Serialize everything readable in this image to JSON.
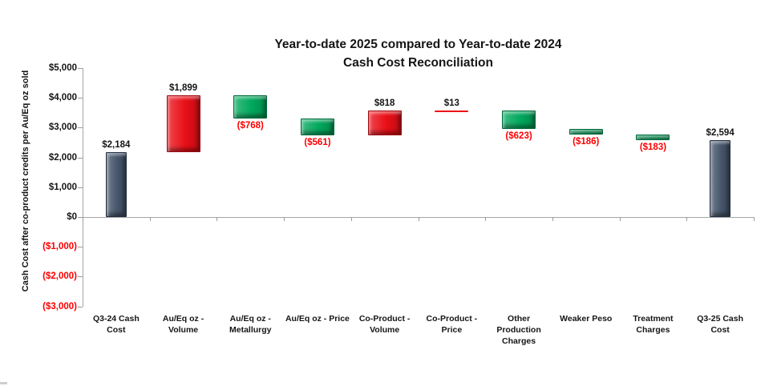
{
  "chart_data": {
    "type": "bar",
    "subtype": "waterfall",
    "title_line1": "Year-to-date 2025 compared to Year-to-date 2024",
    "title_line2": "Cash Cost Reconciliation",
    "ylabel": "Cash Cost after co-product credits per Au/Eq oz sold",
    "xlabel": "",
    "ylim": [
      -3000,
      5000
    ],
    "ytick_values": [
      5000,
      4000,
      3000,
      2000,
      1000,
      0,
      -1000,
      -2000,
      -3000
    ],
    "ytick_labels": [
      "$5,000",
      "$4,000",
      "$3,000",
      "$2,000",
      "$1,000",
      "$0",
      "($1,000)",
      "($2,000)",
      "($3,000)"
    ],
    "grid": false,
    "legend": false,
    "bars": [
      {
        "category": "Q3-24 Cash\nCost",
        "label": "$2,184",
        "value": 2184,
        "kind": "total"
      },
      {
        "category": "Au/Eq oz -\nVolume",
        "label": "$1,899",
        "value": 1899,
        "kind": "increase"
      },
      {
        "category": "Au/Eq oz -\nMetallurgy",
        "label": "($768)",
        "value": -768,
        "kind": "decrease"
      },
      {
        "category": "Au/Eq oz - Price",
        "label": "($561)",
        "value": -561,
        "kind": "decrease"
      },
      {
        "category": "Co-Product -\nVolume",
        "label": "$818",
        "value": 818,
        "kind": "increase"
      },
      {
        "category": "Co-Product -\nPrice",
        "label": "$13",
        "value": 13,
        "kind": "increase"
      },
      {
        "category": "Other\nProduction\nCharges",
        "label": "($623)",
        "value": -623,
        "kind": "decrease"
      },
      {
        "category": "Weaker Peso",
        "label": "($186)",
        "value": -186,
        "kind": "decrease"
      },
      {
        "category": "Treatment\nCharges",
        "label": "($183)",
        "value": -183,
        "kind": "decrease"
      },
      {
        "category": "Q3-25 Cash\nCost",
        "label": "$2,594",
        "value": 2594,
        "kind": "total"
      }
    ],
    "colors": {
      "total_bar": "#47566c",
      "total_border": "#222e3f",
      "increase_bar": "#e90f17",
      "increase_border": "#9c090e",
      "decrease_bar": "#00a85c",
      "decrease_border": "#00693a",
      "positive_label": "#151515",
      "negative_label": "#fe0000",
      "axis_line": "#a6a6a6"
    }
  }
}
